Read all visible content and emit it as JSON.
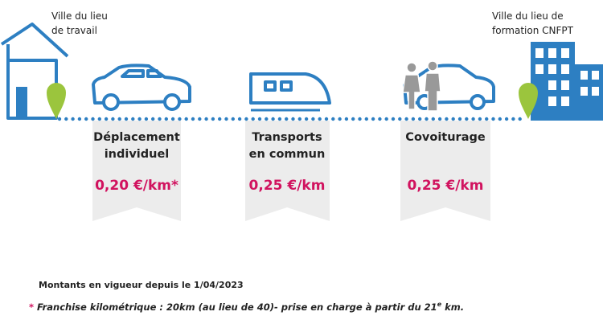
{
  "origin": {
    "lines": [
      "Ville du lieu",
      "de travail"
    ]
  },
  "destination": {
    "lines": [
      "Ville du lieu de",
      "formation CNFPT"
    ]
  },
  "modes": [
    {
      "title_lines": [
        "Déplacement",
        "individuel"
      ],
      "rate": "0,20 €/km*"
    },
    {
      "title_lines": [
        "Transports",
        "en commun"
      ],
      "rate": "0,25 €/km"
    },
    {
      "title_lines": [
        "Covoiturage"
      ],
      "rate": "0,25 €/km"
    }
  ],
  "footer": {
    "effective": "Montants en vigueur depuis le 1/04/2023",
    "note": {
      "asterisk": "*",
      "text": " Franchise kilométrique : 20km (au lieu de 40)- prise en charge à partir du 21",
      "sup": "e",
      "tail": " km."
    }
  }
}
